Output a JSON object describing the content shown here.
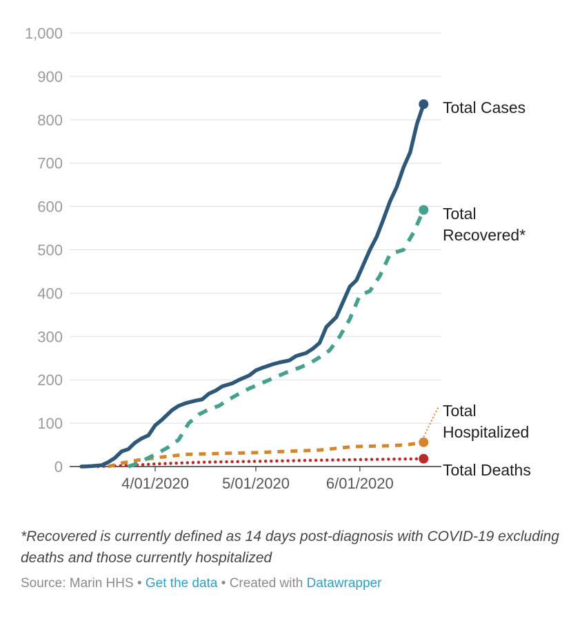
{
  "chart_data": {
    "type": "line",
    "title": "",
    "xlabel": "",
    "ylabel": "",
    "ylim": [
      0,
      1000
    ],
    "y_ticks": [
      "0",
      "100",
      "200",
      "300",
      "400",
      "500",
      "600",
      "700",
      "800",
      "900",
      "1,000"
    ],
    "y_tick_values": [
      0,
      100,
      200,
      300,
      400,
      500,
      600,
      700,
      800,
      900,
      1000
    ],
    "x_tick_labels": [
      "4/01/2020",
      "5/01/2020",
      "6/01/2020"
    ],
    "x_tick_dates": [
      "2020-04-01",
      "2020-05-01",
      "2020-06-01"
    ],
    "xlim": [
      "2020-03-10",
      "2020-06-22"
    ],
    "grid": true,
    "colors": {
      "cases": "#2e5877",
      "recovered": "#45a08d",
      "hospitalized": "#d3862b",
      "deaths": "#b92a2a",
      "grid": "#dddddd",
      "axis": "#333333"
    },
    "series": [
      {
        "key": "cases",
        "name": "Total Cases",
        "style": "solid",
        "points": [
          [
            "2020-03-10",
            0
          ],
          [
            "2020-03-13",
            1
          ],
          [
            "2020-03-16",
            3
          ],
          [
            "2020-03-18",
            10
          ],
          [
            "2020-03-20",
            20
          ],
          [
            "2020-03-22",
            35
          ],
          [
            "2020-03-24",
            40
          ],
          [
            "2020-03-26",
            55
          ],
          [
            "2020-03-28",
            65
          ],
          [
            "2020-03-30",
            72
          ],
          [
            "2020-04-01",
            95
          ],
          [
            "2020-04-03",
            108
          ],
          [
            "2020-04-06",
            130
          ],
          [
            "2020-04-08",
            140
          ],
          [
            "2020-04-10",
            146
          ],
          [
            "2020-04-13",
            152
          ],
          [
            "2020-04-15",
            155
          ],
          [
            "2020-04-17",
            168
          ],
          [
            "2020-04-19",
            175
          ],
          [
            "2020-04-21",
            185
          ],
          [
            "2020-04-24",
            192
          ],
          [
            "2020-04-26",
            200
          ],
          [
            "2020-04-29",
            210
          ],
          [
            "2020-05-01",
            222
          ],
          [
            "2020-05-03",
            228
          ],
          [
            "2020-05-06",
            236
          ],
          [
            "2020-05-08",
            240
          ],
          [
            "2020-05-11",
            245
          ],
          [
            "2020-05-13",
            255
          ],
          [
            "2020-05-16",
            262
          ],
          [
            "2020-05-18",
            272
          ],
          [
            "2020-05-20",
            285
          ],
          [
            "2020-05-22",
            322
          ],
          [
            "2020-05-25",
            345
          ],
          [
            "2020-05-27",
            380
          ],
          [
            "2020-05-29",
            415
          ],
          [
            "2020-05-31",
            430
          ],
          [
            "2020-06-02",
            465
          ],
          [
            "2020-06-04",
            500
          ],
          [
            "2020-06-06",
            530
          ],
          [
            "2020-06-08",
            570
          ],
          [
            "2020-06-10",
            612
          ],
          [
            "2020-06-12",
            645
          ],
          [
            "2020-06-14",
            690
          ],
          [
            "2020-06-16",
            725
          ],
          [
            "2020-06-18",
            790
          ],
          [
            "2020-06-20",
            836
          ]
        ]
      },
      {
        "key": "recovered",
        "name": "Total Recovered*",
        "name_lines": [
          "Total",
          "Recovered*"
        ],
        "style": "dashed",
        "points": [
          [
            "2020-03-24",
            0
          ],
          [
            "2020-03-27",
            8
          ],
          [
            "2020-03-30",
            20
          ],
          [
            "2020-04-02",
            32
          ],
          [
            "2020-04-05",
            45
          ],
          [
            "2020-04-08",
            62
          ],
          [
            "2020-04-11",
            100
          ],
          [
            "2020-04-14",
            120
          ],
          [
            "2020-04-17",
            132
          ],
          [
            "2020-04-20",
            140
          ],
          [
            "2020-04-23",
            155
          ],
          [
            "2020-04-26",
            168
          ],
          [
            "2020-04-29",
            180
          ],
          [
            "2020-05-02",
            190
          ],
          [
            "2020-05-05",
            200
          ],
          [
            "2020-05-08",
            210
          ],
          [
            "2020-05-11",
            220
          ],
          [
            "2020-05-14",
            228
          ],
          [
            "2020-05-17",
            238
          ],
          [
            "2020-05-20",
            252
          ],
          [
            "2020-05-23",
            268
          ],
          [
            "2020-05-26",
            300
          ],
          [
            "2020-05-29",
            340
          ],
          [
            "2020-06-01",
            395
          ],
          [
            "2020-06-04",
            405
          ],
          [
            "2020-06-07",
            440
          ],
          [
            "2020-06-10",
            490
          ],
          [
            "2020-06-12",
            495
          ],
          [
            "2020-06-14",
            500
          ],
          [
            "2020-06-17",
            540
          ],
          [
            "2020-06-20",
            592
          ]
        ]
      },
      {
        "key": "hospitalized",
        "name": "Total Hospitalized",
        "name_lines": [
          "Total",
          "Hospitalized"
        ],
        "style": "dashed",
        "points": [
          [
            "2020-03-18",
            0
          ],
          [
            "2020-03-22",
            8
          ],
          [
            "2020-03-27",
            15
          ],
          [
            "2020-04-01",
            20
          ],
          [
            "2020-04-10",
            28
          ],
          [
            "2020-04-20",
            30
          ],
          [
            "2020-05-01",
            32
          ],
          [
            "2020-05-10",
            35
          ],
          [
            "2020-05-20",
            38
          ],
          [
            "2020-05-30",
            46
          ],
          [
            "2020-06-10",
            48
          ],
          [
            "2020-06-15",
            50
          ],
          [
            "2020-06-20",
            56
          ]
        ]
      },
      {
        "key": "deaths",
        "name": "Total Deaths",
        "style": "dotted",
        "points": [
          [
            "2020-03-15",
            0
          ],
          [
            "2020-03-25",
            3
          ],
          [
            "2020-04-01",
            6
          ],
          [
            "2020-04-15",
            10
          ],
          [
            "2020-05-01",
            12
          ],
          [
            "2020-05-15",
            14
          ],
          [
            "2020-06-01",
            16
          ],
          [
            "2020-06-20",
            18
          ]
        ]
      }
    ]
  },
  "footnote": "*Recovered is currently defined as 14 days post-diagnosis with COVID-19 excluding deaths and those currently hospitalized",
  "source": {
    "prefix": "Source: Marin HHS",
    "separator": "•",
    "get_data": "Get the data",
    "created_with": "Created with",
    "tool": "Datawrapper"
  }
}
